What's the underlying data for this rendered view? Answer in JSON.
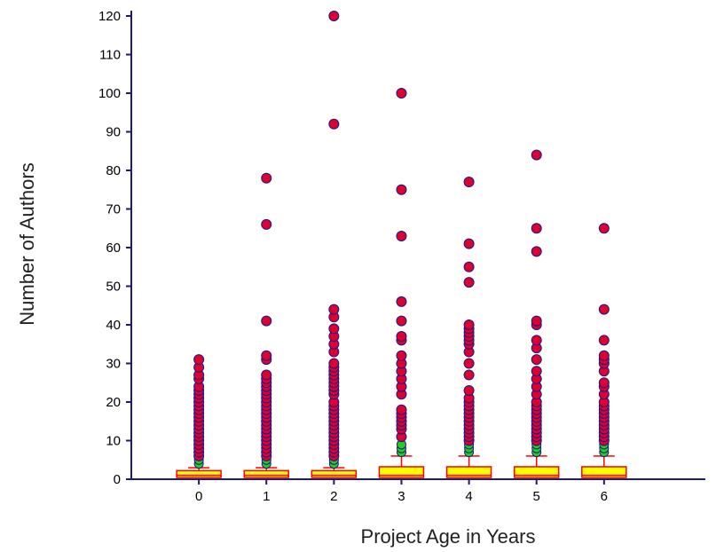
{
  "chart_data": {
    "type": "box",
    "xlabel": "Project Age in Years",
    "ylabel": "Number of Authors",
    "ylim": [
      0,
      120
    ],
    "xlim": [
      -1,
      7.5
    ],
    "yticks": [
      0,
      10,
      20,
      30,
      40,
      50,
      60,
      70,
      80,
      90,
      100,
      110,
      120
    ],
    "categories": [
      "0",
      "1",
      "2",
      "3",
      "4",
      "5",
      "6"
    ],
    "grid": false,
    "colors": {
      "axis": "#1a1a80",
      "box_fill": "#ffff00",
      "box_edge": "#ff0000",
      "outlier_fill": "#dd0033",
      "outlier_edge": "#1a1a80",
      "near_outlier_fill": "#22cc22"
    },
    "boxes": [
      {
        "category": "0",
        "whisker_low": 1,
        "q1": 1,
        "median": 1,
        "q3": 2,
        "whisker_high": 3,
        "near_outliers": [
          4,
          5
        ],
        "outliers": [
          6,
          7,
          8,
          9,
          10,
          11,
          12,
          13,
          14,
          15,
          16,
          17,
          18,
          19,
          20,
          21,
          22,
          23,
          24,
          26,
          27,
          29,
          31
        ]
      },
      {
        "category": "1",
        "whisker_low": 1,
        "q1": 1,
        "median": 1,
        "q3": 2,
        "whisker_high": 3,
        "near_outliers": [
          4,
          5
        ],
        "outliers": [
          6,
          7,
          8,
          9,
          10,
          11,
          12,
          13,
          14,
          15,
          16,
          17,
          18,
          19,
          20,
          21,
          22,
          23,
          24,
          25,
          26,
          27,
          31,
          32,
          41,
          66,
          78
        ]
      },
      {
        "category": "2",
        "whisker_low": 1,
        "q1": 1,
        "median": 1,
        "q3": 2,
        "whisker_high": 3,
        "near_outliers": [
          4,
          5
        ],
        "outliers": [
          6,
          7,
          8,
          9,
          10,
          11,
          12,
          13,
          14,
          15,
          16,
          17,
          18,
          19,
          20,
          22,
          23,
          24,
          25,
          26,
          27,
          28,
          29,
          30,
          33,
          35,
          37,
          39,
          42,
          44,
          92,
          120
        ]
      },
      {
        "category": "3",
        "whisker_low": 1,
        "q1": 1,
        "median": 1,
        "q3": 3,
        "whisker_high": 6,
        "near_outliers": [
          7,
          8,
          9
        ],
        "outliers": [
          11,
          13,
          14,
          15,
          16,
          17,
          18,
          22,
          24,
          26,
          28,
          30,
          32,
          36,
          37,
          41,
          46,
          63,
          75,
          100
        ]
      },
      {
        "category": "4",
        "whisker_low": 1,
        "q1": 1,
        "median": 1,
        "q3": 3,
        "whisker_high": 6,
        "near_outliers": [
          7,
          8,
          9
        ],
        "outliers": [
          10,
          11,
          12,
          13,
          14,
          15,
          16,
          17,
          18,
          19,
          20,
          21,
          23,
          27,
          30,
          33,
          35,
          36,
          37,
          38,
          39,
          40,
          51,
          55,
          61,
          77
        ]
      },
      {
        "category": "5",
        "whisker_low": 1,
        "q1": 1,
        "median": 1,
        "q3": 3,
        "whisker_high": 6,
        "near_outliers": [
          7,
          8,
          9
        ],
        "outliers": [
          10,
          11,
          12,
          13,
          14,
          15,
          16,
          17,
          18,
          19,
          20,
          22,
          24,
          26,
          28,
          31,
          34,
          36,
          40,
          41,
          59,
          65,
          84
        ]
      },
      {
        "category": "6",
        "whisker_low": 1,
        "q1": 1,
        "median": 1,
        "q3": 3,
        "whisker_high": 6,
        "near_outliers": [
          7,
          8,
          9
        ],
        "outliers": [
          10,
          11,
          12,
          13,
          14,
          15,
          16,
          17,
          18,
          19,
          20,
          22,
          24,
          25,
          28,
          30,
          31,
          32,
          36,
          44,
          65
        ]
      }
    ]
  }
}
